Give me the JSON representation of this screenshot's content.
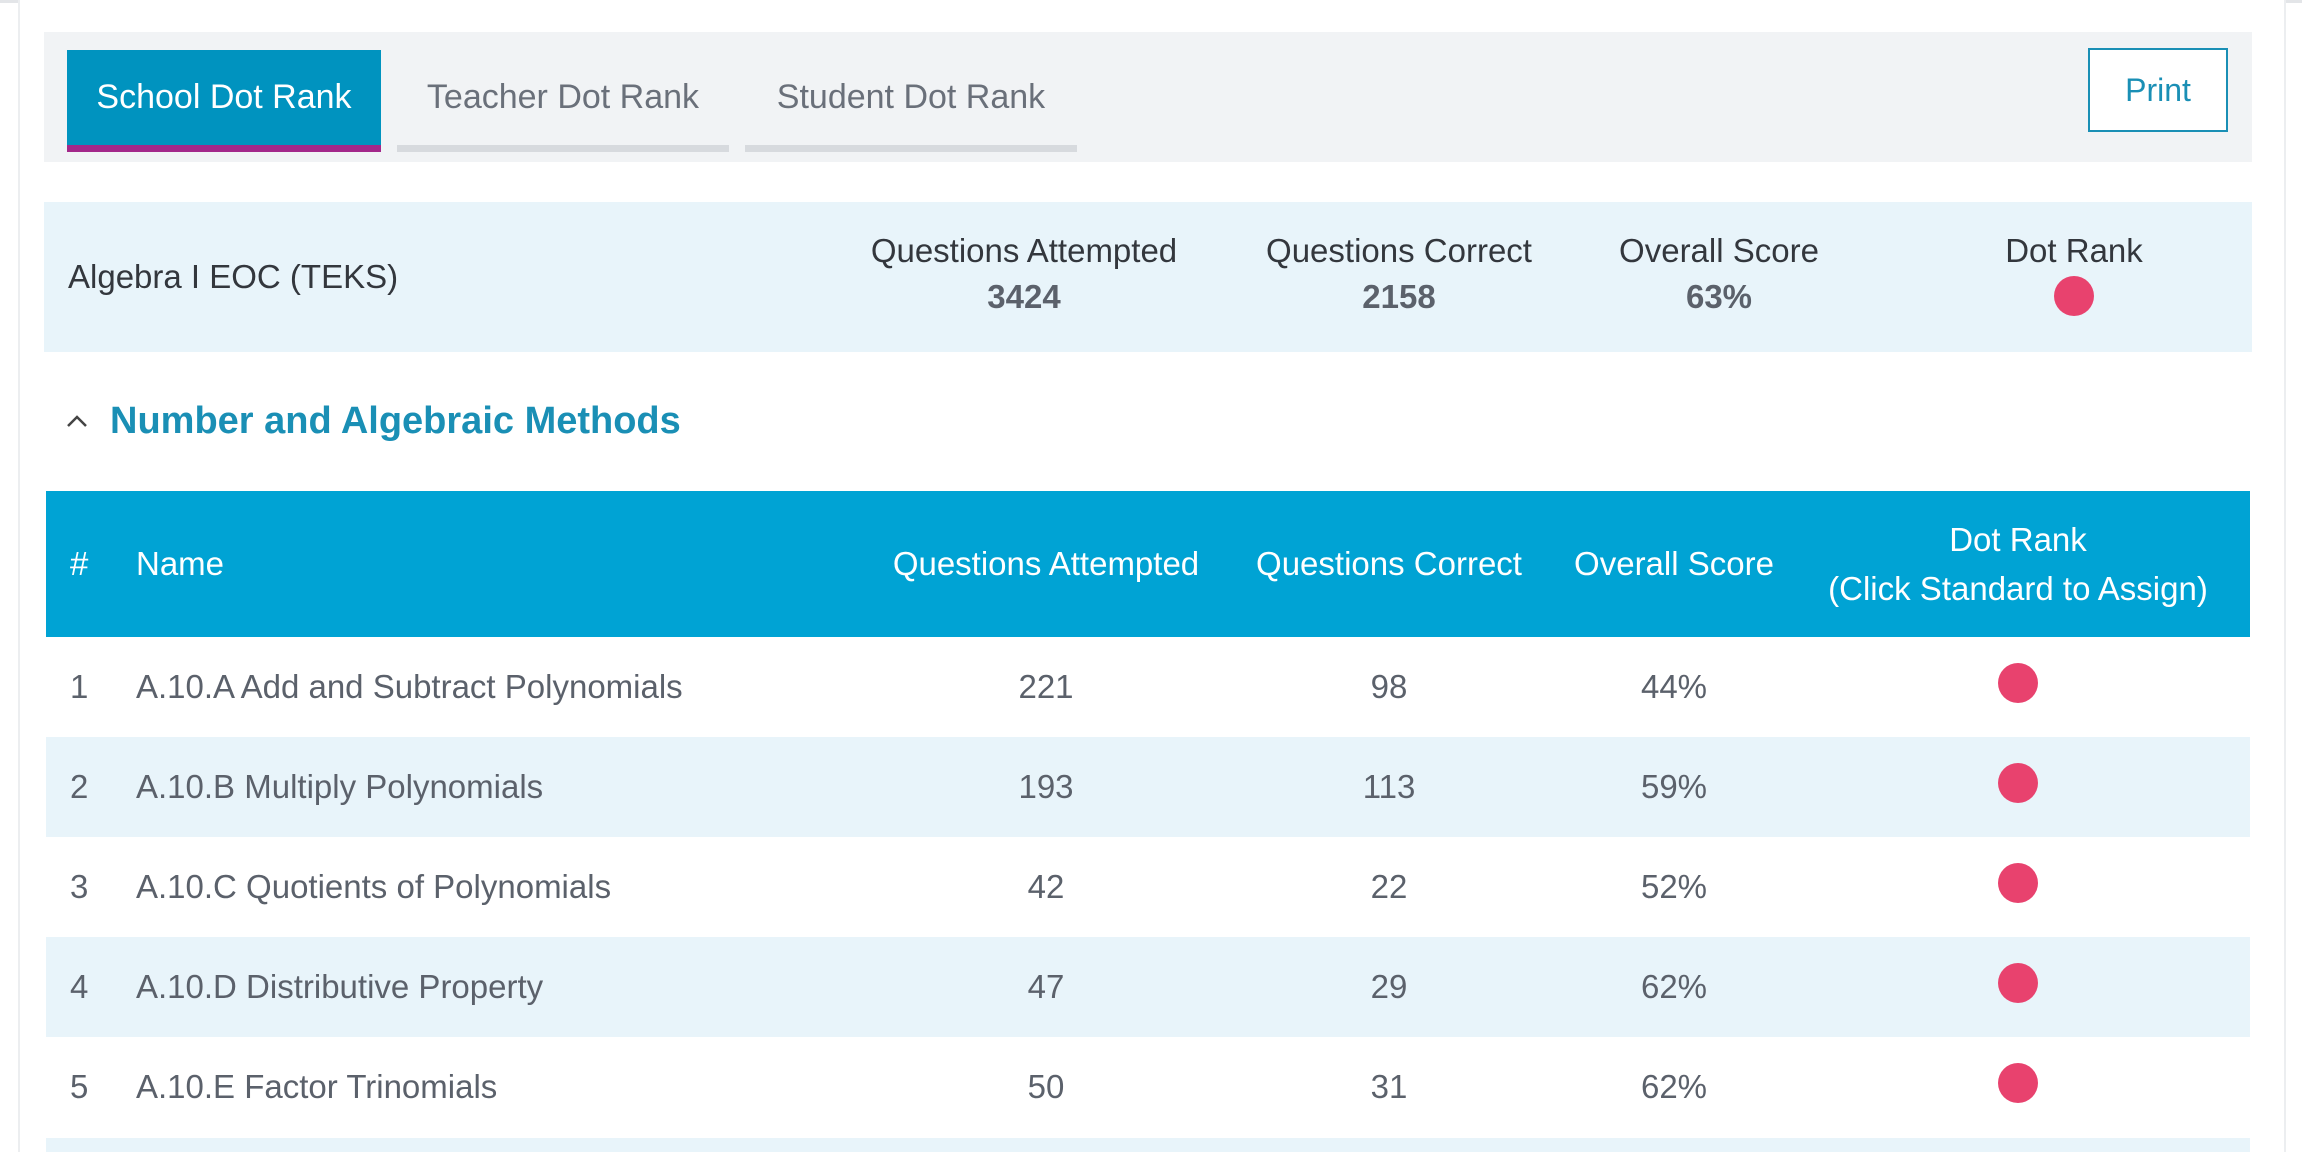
{
  "tabs": [
    {
      "label": "School Dot Rank",
      "active": true
    },
    {
      "label": "Teacher Dot Rank",
      "active": false
    },
    {
      "label": "Student Dot Rank",
      "active": false
    }
  ],
  "print_label": "Print",
  "summary": {
    "course": "Algebra I EOC (TEKS)",
    "attempted_label": "Questions Attempted",
    "attempted_value": "3424",
    "correct_label": "Questions Correct",
    "correct_value": "2158",
    "score_label": "Overall Score",
    "score_value": "63%",
    "dotrank_label": "Dot Rank"
  },
  "section": {
    "title": "Number and Algebraic Methods",
    "expanded": true
  },
  "table": {
    "headers": {
      "num": "#",
      "name": "Name",
      "attempted": "Questions Attempted",
      "correct": "Questions Correct",
      "score": "Overall Score",
      "dotrank_line1": "Dot Rank",
      "dotrank_line2": "(Click Standard to Assign)"
    },
    "rows": [
      {
        "num": "1",
        "name": "A.10.A Add and Subtract Polynomials",
        "attempted": "221",
        "correct": "98",
        "score": "44%"
      },
      {
        "num": "2",
        "name": "A.10.B Multiply Polynomials",
        "attempted": "193",
        "correct": "113",
        "score": "59%"
      },
      {
        "num": "3",
        "name": "A.10.C Quotients of Polynomials",
        "attempted": "42",
        "correct": "22",
        "score": "52%"
      },
      {
        "num": "4",
        "name": "A.10.D Distributive Property",
        "attempted": "47",
        "correct": "29",
        "score": "62%"
      },
      {
        "num": "5",
        "name": "A.10.E Factor Trinomials",
        "attempted": "50",
        "correct": "31",
        "score": "62%"
      }
    ]
  },
  "colors": {
    "dot": "#e8426e",
    "header_bg": "#00a3d4",
    "active_tab": "#0093bf",
    "tab_accent": "#a3288a"
  }
}
